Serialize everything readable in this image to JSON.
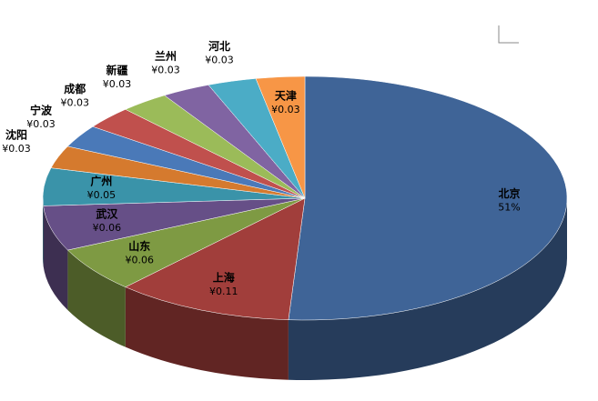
{
  "chart_data": {
    "type": "pie3d",
    "categories": [
      "北京",
      "上海",
      "山东",
      "武汉",
      "广州",
      "沈阳",
      "宁波",
      "成都",
      "新疆",
      "兰州",
      "河北",
      "天津"
    ],
    "values": [
      0.51,
      0.11,
      0.06,
      0.06,
      0.05,
      0.03,
      0.03,
      0.03,
      0.03,
      0.03,
      0.03,
      0.03
    ],
    "value_labels": [
      "51%",
      "¥0.11",
      "¥0.06",
      "¥0.06",
      "¥0.05",
      "¥0.03",
      "¥0.03",
      "¥0.03",
      "¥0.03",
      "¥0.03",
      "¥0.03",
      "¥0.03"
    ],
    "colors": [
      "#3f6497",
      "#a13e3b",
      "#7e9a43",
      "#664f87",
      "#3a93a9",
      "#d57a2e",
      "#4a79b8",
      "#c0504d",
      "#9bbb59",
      "#8064a2",
      "#4bacc6",
      "#f79646"
    ]
  }
}
